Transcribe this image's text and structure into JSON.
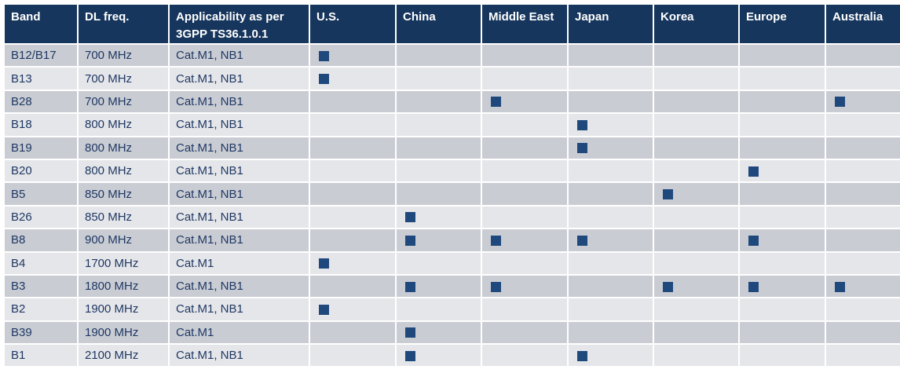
{
  "table": {
    "header": [
      "Band",
      "DL freq.",
      "Applicability as per 3GPP TS36.1.0.1",
      "U.S.",
      "China",
      "Middle East",
      "Japan",
      "Korea",
      "Europe",
      "Australia"
    ],
    "rows": [
      {
        "cells": [
          "B12/B17",
          "700 MHz",
          "Cat.M1, NB1"
        ],
        "marks": [
          true,
          false,
          false,
          false,
          false,
          false,
          false
        ]
      },
      {
        "cells": [
          "B13",
          "700 MHz",
          "Cat.M1, NB1"
        ],
        "marks": [
          true,
          false,
          false,
          false,
          false,
          false,
          false
        ]
      },
      {
        "cells": [
          "B28",
          "700 MHz",
          "Cat.M1, NB1"
        ],
        "marks": [
          false,
          false,
          true,
          false,
          false,
          false,
          true
        ]
      },
      {
        "cells": [
          "B18",
          "800 MHz",
          "Cat.M1, NB1"
        ],
        "marks": [
          false,
          false,
          false,
          true,
          false,
          false,
          false
        ]
      },
      {
        "cells": [
          "B19",
          "800 MHz",
          "Cat.M1, NB1"
        ],
        "marks": [
          false,
          false,
          false,
          true,
          false,
          false,
          false
        ]
      },
      {
        "cells": [
          "B20",
          "800 MHz",
          "Cat.M1, NB1"
        ],
        "marks": [
          false,
          false,
          false,
          false,
          false,
          true,
          false
        ]
      },
      {
        "cells": [
          "B5",
          "850 MHz",
          "Cat.M1, NB1"
        ],
        "marks": [
          false,
          false,
          false,
          false,
          true,
          false,
          false
        ]
      },
      {
        "cells": [
          "B26",
          "850 MHz",
          "Cat.M1, NB1"
        ],
        "marks": [
          false,
          true,
          false,
          false,
          false,
          false,
          false
        ]
      },
      {
        "cells": [
          "B8",
          "900 MHz",
          "Cat.M1, NB1"
        ],
        "marks": [
          false,
          true,
          true,
          true,
          false,
          true,
          false
        ]
      },
      {
        "cells": [
          "B4",
          "1700 MHz",
          "Cat.M1"
        ],
        "marks": [
          true,
          false,
          false,
          false,
          false,
          false,
          false
        ]
      },
      {
        "cells": [
          "B3",
          "1800 MHz",
          "Cat.M1, NB1"
        ],
        "marks": [
          false,
          true,
          true,
          false,
          true,
          true,
          true
        ]
      },
      {
        "cells": [
          "B2",
          "1900 MHz",
          "Cat.M1, NB1"
        ],
        "marks": [
          true,
          false,
          false,
          false,
          false,
          false,
          false
        ]
      },
      {
        "cells": [
          "B39",
          "1900 MHz",
          "Cat.M1"
        ],
        "marks": [
          false,
          true,
          false,
          false,
          false,
          false,
          false
        ]
      },
      {
        "cells": [
          "B1",
          "2100 MHz",
          "Cat.M1, NB1"
        ],
        "marks": [
          false,
          true,
          false,
          true,
          false,
          false,
          false
        ]
      }
    ]
  }
}
